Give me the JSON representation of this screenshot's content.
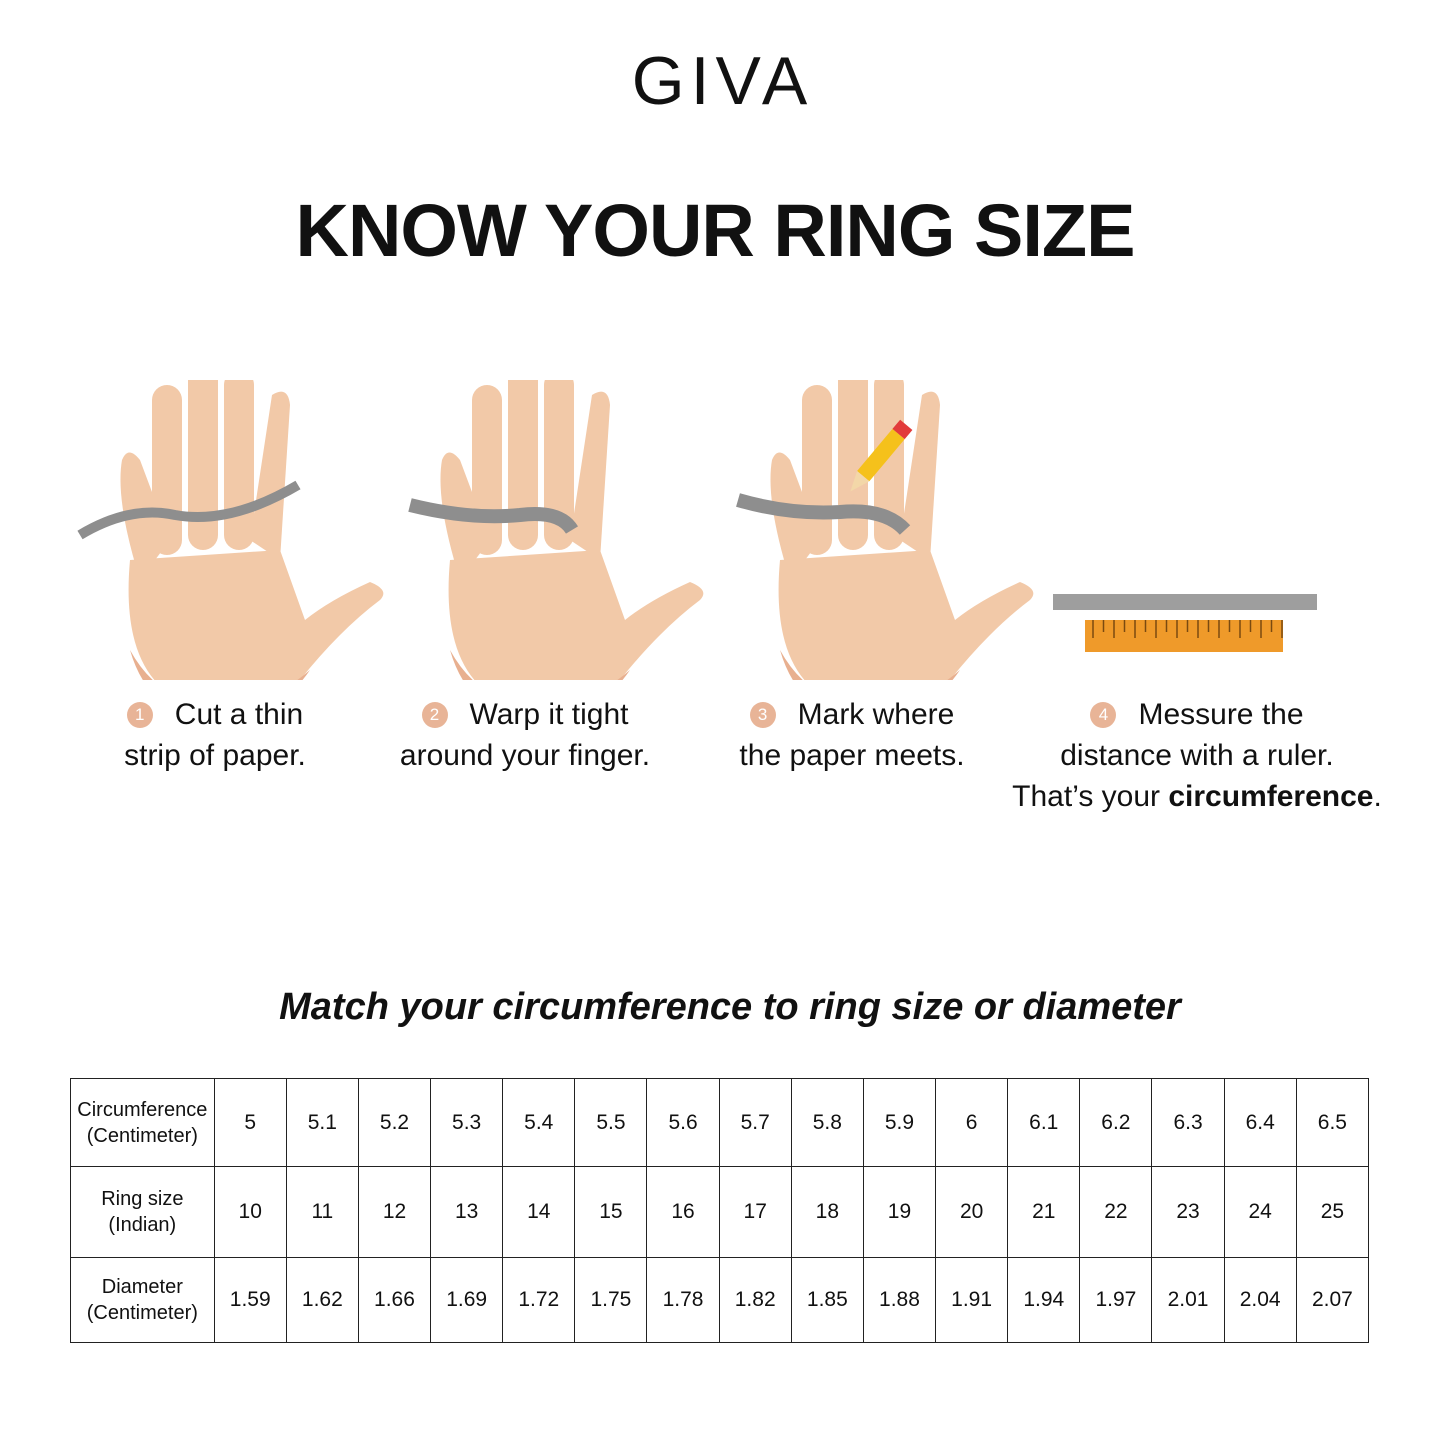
{
  "brand": "GIVA",
  "title": "KNOW YOUR RING SIZE",
  "steps": [
    {
      "number": "1",
      "lines": [
        "Cut a thin",
        "strip of paper."
      ]
    },
    {
      "number": "2",
      "lines": [
        "Warp it tight",
        "around your finger."
      ]
    },
    {
      "number": "3",
      "lines": [
        "Mark where",
        "the paper meets."
      ]
    },
    {
      "number": "4",
      "lines": [
        "Messure the",
        "distance with a ruler.",
        [
          "That’s your ",
          "circumference",
          "."
        ]
      ]
    }
  ],
  "table_title": "Match your circumference to ring size or diameter",
  "table": {
    "rows": [
      {
        "header": [
          "Circumference",
          "(Centimeter)"
        ],
        "cells": [
          "5",
          "5.1",
          "5.2",
          "5.3",
          "5.4",
          "5.5",
          "5.6",
          "5.7",
          "5.8",
          "5.9",
          "6",
          "6.1",
          "6.2",
          "6.3",
          "6.4",
          "6.5"
        ]
      },
      {
        "header": [
          "Ring size",
          "(Indian)"
        ],
        "cells": [
          "10",
          "11",
          "12",
          "13",
          "14",
          "15",
          "16",
          "17",
          "18",
          "19",
          "20",
          "21",
          "22",
          "23",
          "24",
          "25"
        ]
      },
      {
        "header": [
          "Diameter",
          "(Centimeter)"
        ],
        "cells": [
          "1.59",
          "1.62",
          "1.66",
          "1.69",
          "1.72",
          "1.75",
          "1.78",
          "1.82",
          "1.85",
          "1.88",
          "1.91",
          "1.94",
          "1.97",
          "2.01",
          "2.04",
          "2.07"
        ]
      }
    ]
  }
}
